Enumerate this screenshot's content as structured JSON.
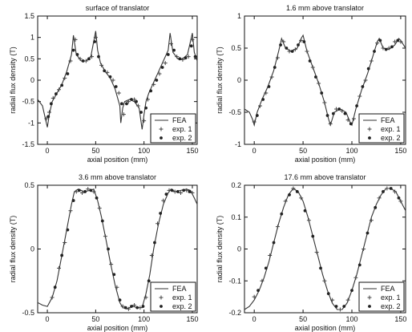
{
  "chart_data": [
    {
      "type": "line",
      "title": "surface of translator",
      "xlabel": "axial position (mm)",
      "ylabel": "radial flux density (T)",
      "xlim": [
        -10,
        155
      ],
      "ylim": [
        -1.5,
        1.5
      ],
      "xticks": [
        0,
        50,
        100,
        150
      ],
      "xtick_labels": [
        "0",
        "50",
        "100",
        "150"
      ],
      "yticks": [
        -1.5,
        -1,
        -0.5,
        0,
        0.5,
        1,
        1.5
      ],
      "ytick_labels": [
        "-1.5",
        "-1",
        "-0.5",
        "0",
        "0.5",
        "1",
        "1.5"
      ],
      "legend": [
        "FEA",
        "exp. 1",
        "exp. 2"
      ],
      "legend_position": "bottom-right",
      "series": [
        {
          "name": "FEA",
          "style": "line",
          "x": [
            -10,
            -5,
            -2,
            0,
            2,
            5,
            10,
            15,
            20,
            25,
            27,
            30,
            35,
            40,
            45,
            50,
            52,
            55,
            60,
            65,
            70,
            75,
            76,
            78,
            80,
            85,
            90,
            95,
            98,
            100,
            102,
            105,
            110,
            115,
            120,
            125,
            127,
            130,
            135,
            140,
            145,
            150,
            152,
            155
          ],
          "y": [
            -0.45,
            -0.6,
            -0.9,
            -1.1,
            -0.8,
            -0.5,
            -0.3,
            -0.1,
            0.2,
            0.6,
            1.05,
            0.6,
            0.45,
            0.45,
            0.55,
            1.15,
            0.7,
            0.4,
            0.2,
            0.05,
            -0.2,
            -0.6,
            -1.0,
            -0.65,
            -0.5,
            -0.45,
            -0.5,
            -0.65,
            -1.15,
            -0.8,
            -0.5,
            -0.3,
            -0.05,
            0.2,
            0.45,
            0.7,
            1.1,
            0.65,
            0.5,
            0.5,
            0.6,
            1.1,
            0.65,
            0.45
          ]
        },
        {
          "name": "exp. 1",
          "style": "markers",
          "x": [
            -1,
            2,
            6,
            12,
            18,
            24,
            29,
            34,
            40,
            46,
            50,
            56,
            62,
            68,
            74,
            79,
            84,
            90,
            94,
            100,
            104,
            110,
            116,
            122,
            128,
            134,
            140,
            146,
            150
          ],
          "y": [
            -0.9,
            -0.75,
            -0.42,
            -0.22,
            0.05,
            0.45,
            0.95,
            0.5,
            0.45,
            0.55,
            1.0,
            0.35,
            0.18,
            0.0,
            -0.3,
            -0.8,
            -0.5,
            -0.45,
            -0.6,
            -0.95,
            -0.45,
            -0.1,
            0.15,
            0.4,
            0.85,
            0.55,
            0.48,
            0.55,
            0.95
          ]
        },
        {
          "name": "exp. 2",
          "style": "markers",
          "x": [
            1,
            4,
            9,
            15,
            21,
            27,
            31,
            37,
            43,
            49,
            53,
            59,
            65,
            71,
            77,
            82,
            87,
            92,
            97,
            102,
            107,
            113,
            119,
            125,
            131,
            137,
            143,
            149,
            153
          ],
          "y": [
            -0.85,
            -0.55,
            -0.32,
            -0.12,
            0.15,
            0.7,
            0.6,
            0.45,
            0.5,
            0.9,
            0.55,
            0.22,
            0.08,
            -0.15,
            -0.55,
            -0.55,
            -0.45,
            -0.5,
            -0.75,
            -0.65,
            -0.25,
            0.0,
            0.3,
            0.6,
            0.7,
            0.5,
            0.52,
            0.8,
            0.55
          ]
        }
      ]
    },
    {
      "type": "line",
      "title": "1.6 mm above translator",
      "xlabel": "axial position (mm)",
      "ylabel": "radial flux density (T)",
      "xlim": [
        -10,
        155
      ],
      "ylim": [
        -1,
        1
      ],
      "xticks": [
        0,
        50,
        100,
        150
      ],
      "xtick_labels": [
        "0",
        "50",
        "100",
        "150"
      ],
      "yticks": [
        -1,
        -0.5,
        0,
        0.5,
        1
      ],
      "ytick_labels": [
        "-1",
        "-0.5",
        "0",
        "0.5",
        "1"
      ],
      "legend": [
        "FEA",
        "exp. 1",
        "exp. 2"
      ],
      "legend_position": "bottom-right",
      "series": [
        {
          "name": "FEA",
          "style": "line",
          "x": [
            -10,
            -5,
            -2,
            0,
            3,
            8,
            14,
            20,
            25,
            28,
            32,
            38,
            44,
            48,
            50,
            54,
            60,
            66,
            72,
            76,
            78,
            82,
            88,
            94,
            98,
            100,
            104,
            110,
            116,
            122,
            126,
            128,
            132,
            138,
            144,
            148,
            150,
            155
          ],
          "y": [
            -0.45,
            -0.5,
            -0.6,
            -0.7,
            -0.5,
            -0.3,
            -0.1,
            0.15,
            0.45,
            0.65,
            0.5,
            0.45,
            0.5,
            0.65,
            0.7,
            0.45,
            0.2,
            -0.05,
            -0.35,
            -0.6,
            -0.7,
            -0.5,
            -0.45,
            -0.5,
            -0.65,
            -0.7,
            -0.45,
            -0.15,
            0.1,
            0.4,
            0.6,
            0.65,
            0.5,
            0.48,
            0.55,
            0.65,
            0.62,
            0.5
          ]
        },
        {
          "name": "exp. 1",
          "style": "markers",
          "x": [
            0,
            6,
            12,
            18,
            24,
            30,
            36,
            42,
            48,
            54,
            60,
            66,
            72,
            78,
            84,
            90,
            96,
            102,
            108,
            114,
            120,
            126,
            132,
            138,
            144,
            150
          ],
          "y": [
            -0.65,
            -0.4,
            -0.2,
            0.05,
            0.35,
            0.6,
            0.45,
            0.48,
            0.62,
            0.45,
            0.2,
            -0.05,
            -0.35,
            -0.68,
            -0.45,
            -0.48,
            -0.62,
            -0.6,
            -0.25,
            0.0,
            0.3,
            0.58,
            0.5,
            0.5,
            0.6,
            0.6
          ]
        },
        {
          "name": "exp. 2",
          "style": "markers",
          "x": [
            3,
            9,
            15,
            21,
            27,
            33,
            39,
            45,
            51,
            57,
            63,
            69,
            75,
            81,
            87,
            93,
            99,
            105,
            111,
            117,
            123,
            129,
            135,
            141,
            147
          ],
          "y": [
            -0.55,
            -0.3,
            -0.1,
            0.2,
            0.55,
            0.5,
            0.45,
            0.55,
            0.6,
            0.3,
            0.05,
            -0.2,
            -0.55,
            -0.52,
            -0.45,
            -0.52,
            -0.68,
            -0.4,
            -0.1,
            0.18,
            0.45,
            0.62,
            0.48,
            0.52,
            0.62
          ]
        }
      ]
    },
    {
      "type": "line",
      "title": "3.6 mm above translator",
      "xlabel": "axial position (mm)",
      "ylabel": "radial flux density (T)",
      "xlim": [
        -10,
        155
      ],
      "ylim": [
        -0.5,
        0.5
      ],
      "xticks": [
        0,
        50,
        100,
        150
      ],
      "xtick_labels": [
        "0",
        "50",
        "100",
        "150"
      ],
      "yticks": [
        -0.5,
        0,
        0.5
      ],
      "ytick_labels": [
        "-0.5",
        "0",
        "0.5"
      ],
      "legend": [
        "FEA",
        "exp. 1",
        "exp. 2"
      ],
      "legend_position": "bottom-right",
      "series": [
        {
          "name": "FEA",
          "style": "line",
          "x": [
            -10,
            -5,
            0,
            5,
            10,
            15,
            20,
            25,
            28,
            32,
            38,
            44,
            48,
            52,
            56,
            60,
            65,
            70,
            75,
            78,
            82,
            88,
            94,
            98,
            102,
            106,
            110,
            115,
            120,
            125,
            128,
            132,
            138,
            144,
            148,
            152,
            155
          ],
          "y": [
            -0.42,
            -0.44,
            -0.45,
            -0.38,
            -0.25,
            -0.05,
            0.15,
            0.35,
            0.45,
            0.47,
            0.45,
            0.46,
            0.47,
            0.38,
            0.25,
            0.1,
            -0.1,
            -0.28,
            -0.42,
            -0.46,
            -0.47,
            -0.45,
            -0.46,
            -0.46,
            -0.35,
            -0.2,
            0.0,
            0.2,
            0.35,
            0.44,
            0.47,
            0.45,
            0.46,
            0.47,
            0.46,
            0.4,
            0.35
          ]
        },
        {
          "name": "exp. 1",
          "style": "markers",
          "x": [
            5,
            12,
            18,
            24,
            30,
            36,
            42,
            48,
            54,
            60,
            66,
            72,
            78,
            84,
            90,
            96,
            102,
            108,
            114,
            120,
            126,
            132,
            138,
            144,
            150
          ],
          "y": [
            -0.38,
            -0.15,
            0.05,
            0.3,
            0.45,
            0.44,
            0.47,
            0.45,
            0.32,
            0.1,
            -0.12,
            -0.3,
            -0.45,
            -0.47,
            -0.44,
            -0.46,
            -0.38,
            -0.05,
            0.2,
            0.38,
            0.46,
            0.45,
            0.44,
            0.46,
            0.44
          ]
        },
        {
          "name": "exp. 2",
          "style": "markers",
          "x": [
            8,
            15,
            21,
            27,
            33,
            39,
            45,
            51,
            57,
            63,
            69,
            75,
            81,
            87,
            93,
            99,
            105,
            111,
            117,
            123,
            129,
            135,
            141,
            147
          ],
          "y": [
            -0.3,
            -0.05,
            0.15,
            0.38,
            0.46,
            0.45,
            0.46,
            0.4,
            0.22,
            0.0,
            -0.2,
            -0.4,
            -0.46,
            -0.45,
            -0.46,
            -0.45,
            -0.25,
            0.05,
            0.28,
            0.43,
            0.46,
            0.45,
            0.46,
            0.45
          ]
        }
      ]
    },
    {
      "type": "line",
      "title": "17.6 mm above translator",
      "xlabel": "axial position (mm)",
      "ylabel": "radial flux density (T)",
      "xlim": [
        -10,
        155
      ],
      "ylim": [
        -0.2,
        0.2
      ],
      "xticks": [
        0,
        50,
        100,
        150
      ],
      "xtick_labels": [
        "0",
        "50",
        "100",
        "150"
      ],
      "yticks": [
        -0.2,
        -0.1,
        0,
        0.1,
        0.2
      ],
      "ytick_labels": [
        "-0.2",
        "-0.1",
        "0",
        "0.1",
        "0.2"
      ],
      "legend": [
        "FEA",
        "exp. 1",
        "exp. 2"
      ],
      "legend_position": "bottom-right",
      "series": [
        {
          "name": "FEA",
          "style": "line",
          "x": [
            -10,
            -5,
            0,
            5,
            10,
            15,
            20,
            25,
            30,
            35,
            40,
            45,
            50,
            55,
            60,
            65,
            70,
            75,
            80,
            85,
            90,
            95,
            100,
            105,
            110,
            115,
            120,
            125,
            130,
            135,
            140,
            145,
            150,
            155
          ],
          "y": [
            -0.19,
            -0.18,
            -0.16,
            -0.13,
            -0.09,
            -0.04,
            0.02,
            0.08,
            0.13,
            0.17,
            0.19,
            0.18,
            0.15,
            0.1,
            0.04,
            -0.02,
            -0.08,
            -0.13,
            -0.17,
            -0.19,
            -0.19,
            -0.17,
            -0.13,
            -0.08,
            -0.02,
            0.04,
            0.1,
            0.14,
            0.17,
            0.19,
            0.19,
            0.18,
            0.15,
            0.12
          ]
        },
        {
          "name": "exp. 1",
          "style": "markers",
          "x": [
            0,
            8,
            16,
            24,
            32,
            40,
            48,
            56,
            64,
            72,
            80,
            88,
            96,
            104,
            112,
            120,
            128,
            136,
            144,
            150
          ],
          "y": [
            -0.15,
            -0.1,
            -0.02,
            0.07,
            0.15,
            0.19,
            0.16,
            0.09,
            -0.01,
            -0.1,
            -0.16,
            -0.19,
            -0.16,
            -0.09,
            0.0,
            0.09,
            0.16,
            0.19,
            0.18,
            0.15
          ]
        },
        {
          "name": "exp. 2",
          "style": "markers",
          "x": [
            4,
            12,
            20,
            28,
            36,
            44,
            52,
            60,
            68,
            76,
            84,
            92,
            100,
            108,
            116,
            124,
            132,
            140,
            148
          ],
          "y": [
            -0.13,
            -0.06,
            0.02,
            0.11,
            0.17,
            0.18,
            0.12,
            0.04,
            -0.06,
            -0.14,
            -0.18,
            -0.18,
            -0.13,
            -0.05,
            0.05,
            0.13,
            0.18,
            0.19,
            0.16
          ]
        }
      ]
    }
  ]
}
